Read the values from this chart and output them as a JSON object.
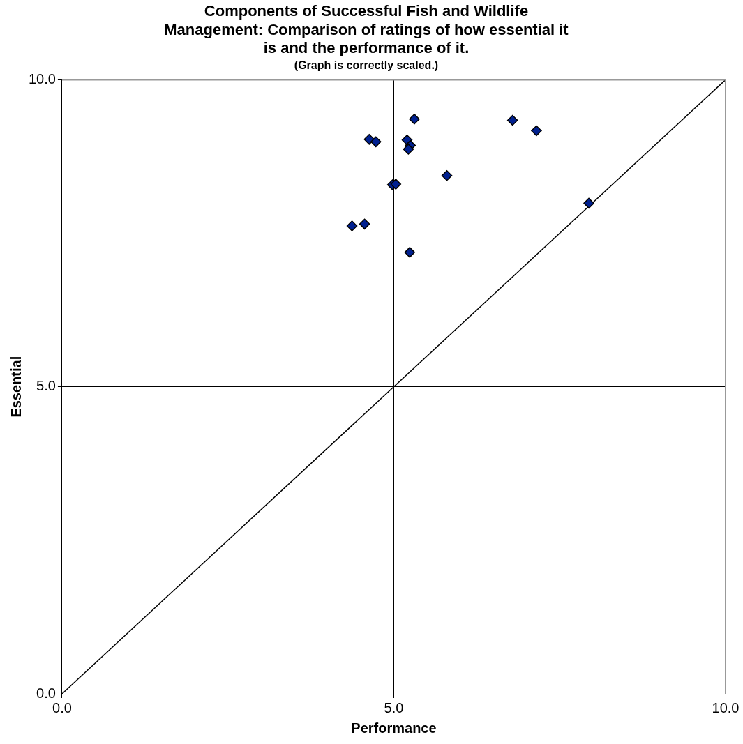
{
  "chart_data": {
    "type": "scatter",
    "title": "Components of Successful Fish and Wildlife\nManagement: Comparison of ratings of how essential it\nis and the performance of it.",
    "subtitle": "(Graph is correctly scaled.)",
    "xlabel": "Performance",
    "ylabel": "Essential",
    "xlim": [
      0,
      10
    ],
    "ylim": [
      0,
      10
    ],
    "xticks": [
      {
        "value": 0,
        "label": "0.0"
      },
      {
        "value": 5,
        "label": "5.0"
      },
      {
        "value": 10,
        "label": "10.0"
      }
    ],
    "yticks": [
      {
        "value": 0,
        "label": "0.0"
      },
      {
        "value": 5,
        "label": "5.0"
      },
      {
        "value": 10,
        "label": "10.0"
      }
    ],
    "grid": true,
    "legend": false,
    "marker": "diamond",
    "series": [
      {
        "color": "#002090",
        "x": [
          5.31,
          6.79,
          7.15,
          4.63,
          4.73,
          5.2,
          5.25,
          5.22,
          5.8,
          4.98,
          5.03,
          7.94,
          4.37,
          4.56,
          5.24
        ],
        "values": [
          9.36,
          9.34,
          9.17,
          9.03,
          8.99,
          9.02,
          8.93,
          8.87,
          8.44,
          8.29,
          8.3,
          7.99,
          7.62,
          7.65,
          7.19
        ]
      },
      {
        "type": "line",
        "color": "#000000",
        "marker": "none",
        "line_style": "solid",
        "x": [
          0,
          10
        ],
        "values": [
          0,
          10
        ]
      }
    ]
  }
}
